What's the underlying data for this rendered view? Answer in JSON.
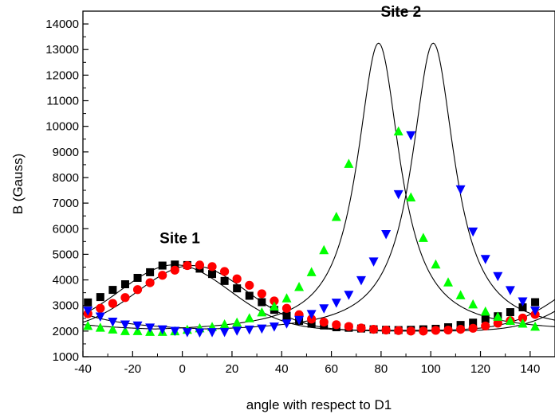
{
  "chart_data": {
    "type": "scatter",
    "title": "",
    "xlabel": "angle with respect to D1",
    "ylabel": "B (Gauss)",
    "xlim": [
      -40,
      150
    ],
    "ylim": [
      1000,
      14500
    ],
    "xticks": [
      -40,
      -20,
      0,
      20,
      40,
      60,
      80,
      100,
      120,
      140
    ],
    "yticks": [
      1000,
      2000,
      3000,
      4000,
      5000,
      6000,
      7000,
      8000,
      9000,
      10000,
      11000,
      12000,
      13000,
      14000
    ],
    "grid": false,
    "legend": "none",
    "annotations": [
      {
        "text": "Site 1",
        "x": -1,
        "y": 5650
      },
      {
        "text": "Site 2",
        "x": 88,
        "y": 14500
      }
    ],
    "series": [
      {
        "marker": "square",
        "color": "#000000",
        "x": [
          -38,
          -33,
          -28,
          -23,
          -18,
          -13,
          -8,
          -3,
          2,
          7,
          12,
          17,
          22,
          27,
          32,
          37,
          42,
          47,
          52,
          57,
          62,
          67,
          72,
          77,
          82,
          87,
          92,
          97,
          102,
          107,
          112,
          117,
          122,
          127,
          132,
          137,
          142
        ],
        "y": [
          3120,
          3330,
          3610,
          3830,
          4080,
          4300,
          4560,
          4600,
          4580,
          4440,
          4230,
          3960,
          3670,
          3380,
          3130,
          2830,
          2600,
          2400,
          2290,
          2220,
          2150,
          2130,
          2100,
          2070,
          2050,
          2040,
          2050,
          2070,
          2090,
          2150,
          2240,
          2330,
          2470,
          2580,
          2740,
          2930,
          3130
        ]
      },
      {
        "marker": "circle",
        "color": "#ff0000",
        "x": [
          -38,
          -33,
          -28,
          -23,
          -18,
          -13,
          -8,
          -3,
          2,
          7,
          12,
          17,
          22,
          27,
          32,
          37,
          42,
          47,
          52,
          57,
          62,
          67,
          72,
          77,
          82,
          87,
          92,
          97,
          102,
          107,
          112,
          117,
          122,
          127,
          132,
          137,
          142
        ],
        "y": [
          2680,
          2890,
          3080,
          3310,
          3620,
          3890,
          4180,
          4380,
          4560,
          4580,
          4520,
          4330,
          4040,
          3790,
          3460,
          3180,
          2890,
          2640,
          2470,
          2350,
          2250,
          2180,
          2120,
          2070,
          2040,
          2020,
          2000,
          2000,
          2030,
          2040,
          2070,
          2110,
          2200,
          2310,
          2410,
          2510,
          2650
        ]
      },
      {
        "marker": "triangle-up",
        "color": "#00ff00",
        "x": [
          -38,
          -33,
          -28,
          -23,
          -18,
          -13,
          -8,
          -3,
          2,
          7,
          12,
          17,
          22,
          27,
          32,
          37,
          42,
          47,
          52,
          57,
          62,
          67,
          87,
          92,
          97,
          102,
          107,
          112,
          117,
          122,
          127,
          132,
          137,
          142
        ],
        "y": [
          2200,
          2130,
          2060,
          2000,
          2000,
          1970,
          1970,
          1990,
          2050,
          2110,
          2160,
          2260,
          2330,
          2500,
          2730,
          2960,
          3280,
          3720,
          4300,
          5160,
          6460,
          8530,
          9800,
          7220,
          5640,
          4600,
          3900,
          3400,
          3040,
          2760,
          2560,
          2400,
          2290,
          2170
        ]
      },
      {
        "marker": "triangle-down",
        "color": "#0000ff",
        "x": [
          -38,
          -33,
          -28,
          -23,
          -18,
          -13,
          -8,
          -3,
          2,
          7,
          12,
          17,
          22,
          27,
          32,
          37,
          42,
          47,
          52,
          57,
          62,
          67,
          72,
          77,
          82,
          87,
          92,
          112,
          117,
          122,
          127,
          132,
          137,
          142
        ],
        "y": [
          2800,
          2570,
          2370,
          2260,
          2220,
          2140,
          2070,
          2010,
          1960,
          1950,
          1960,
          1970,
          2020,
          2060,
          2100,
          2180,
          2300,
          2440,
          2670,
          2890,
          3110,
          3420,
          3990,
          4720,
          5790,
          7350,
          9650,
          7540,
          5890,
          4820,
          4150,
          3600,
          3160,
          2800
        ]
      }
    ],
    "fits": [
      {
        "type": "gauss",
        "center": -3,
        "sigma": 22,
        "base": 2030,
        "amp": 2560,
        "period": 180
      },
      {
        "type": "gauss",
        "center": 4,
        "sigma": 22,
        "base": 2000,
        "amp": 2560,
        "period": 180
      },
      {
        "type": "lorentz",
        "center": 79,
        "gamma": 10.5,
        "base": 1930,
        "amp": 11320,
        "period": 180
      },
      {
        "type": "lorentz",
        "center": 101,
        "gamma": 10.5,
        "base": 1930,
        "amp": 11320,
        "period": 180
      }
    ]
  }
}
